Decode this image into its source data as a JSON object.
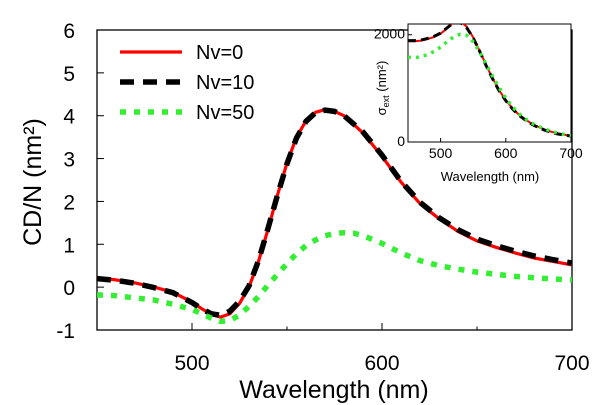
{
  "chart_data": [
    {
      "type": "line",
      "xlabel": "Wavelength (nm)",
      "ylabel": "CD/N (nm²)",
      "xlim": [
        450,
        700
      ],
      "ylim": [
        -1,
        6
      ],
      "xticks": [
        500,
        600,
        700
      ],
      "yticks": [
        -1,
        0,
        1,
        2,
        3,
        4,
        5,
        6
      ],
      "grid": false,
      "legend_position": "top-left",
      "series": [
        {
          "name": "Nv=0",
          "color": "#ff0000",
          "style": "solid",
          "x": [
            450,
            460,
            470,
            480,
            490,
            500,
            505,
            510,
            515,
            520,
            525,
            530,
            535,
            540,
            545,
            550,
            555,
            560,
            565,
            570,
            575,
            580,
            590,
            600,
            610,
            620,
            630,
            640,
            650,
            660,
            670,
            680,
            690,
            700
          ],
          "y": [
            0.22,
            0.17,
            0.1,
            0.0,
            -0.12,
            -0.35,
            -0.5,
            -0.63,
            -0.7,
            -0.62,
            -0.38,
            0.0,
            0.6,
            1.35,
            2.15,
            2.9,
            3.5,
            3.88,
            4.08,
            4.14,
            4.1,
            4.0,
            3.6,
            3.05,
            2.45,
            1.95,
            1.6,
            1.3,
            1.08,
            0.93,
            0.8,
            0.68,
            0.6,
            0.52
          ]
        },
        {
          "name": "Nv=10",
          "color": "#000000",
          "style": "dashed",
          "x": [
            450,
            460,
            470,
            480,
            490,
            500,
            505,
            510,
            515,
            520,
            525,
            530,
            535,
            540,
            545,
            550,
            555,
            560,
            565,
            570,
            575,
            580,
            590,
            600,
            610,
            620,
            630,
            640,
            650,
            660,
            670,
            680,
            690,
            700
          ],
          "y": [
            0.2,
            0.16,
            0.09,
            -0.01,
            -0.13,
            -0.36,
            -0.5,
            -0.62,
            -0.66,
            -0.56,
            -0.33,
            0.03,
            0.62,
            1.37,
            2.15,
            2.88,
            3.48,
            3.87,
            4.07,
            4.13,
            4.1,
            4.0,
            3.62,
            3.08,
            2.47,
            1.98,
            1.62,
            1.34,
            1.12,
            0.97,
            0.84,
            0.73,
            0.64,
            0.56
          ]
        },
        {
          "name": "Nv=50",
          "color": "#33ee33",
          "style": "dotted",
          "x": [
            450,
            460,
            470,
            480,
            490,
            500,
            505,
            510,
            515,
            520,
            525,
            530,
            535,
            540,
            545,
            550,
            555,
            560,
            565,
            570,
            575,
            580,
            585,
            590,
            600,
            610,
            620,
            630,
            640,
            650,
            660,
            670,
            680,
            690,
            700
          ],
          "y": [
            -0.18,
            -0.2,
            -0.25,
            -0.3,
            -0.4,
            -0.52,
            -0.62,
            -0.72,
            -0.8,
            -0.78,
            -0.65,
            -0.45,
            -0.22,
            0.05,
            0.3,
            0.55,
            0.78,
            0.97,
            1.1,
            1.2,
            1.25,
            1.27,
            1.26,
            1.2,
            1.02,
            0.8,
            0.62,
            0.5,
            0.42,
            0.35,
            0.3,
            0.25,
            0.22,
            0.19,
            0.17
          ]
        }
      ]
    },
    {
      "type": "line",
      "xlabel": "Wavelength (nm)",
      "ylabel": "σext (nm²)",
      "ylabel_main": "σ",
      "ylabel_sub": "ext",
      "ylabel_unit": " (nm²)",
      "xlim": [
        450,
        700
      ],
      "ylim": [
        0,
        2200
      ],
      "xticks": [
        500,
        600,
        700
      ],
      "yticks": [
        0,
        2000
      ],
      "grid": false,
      "series": [
        {
          "color": "#ff0000",
          "style": "solid",
          "x": [
            450,
            460,
            470,
            480,
            490,
            500,
            510,
            520,
            525,
            530,
            540,
            550,
            560,
            570,
            580,
            590,
            600,
            610,
            620,
            630,
            640,
            650,
            660,
            670,
            680,
            690,
            700
          ],
          "y": [
            1880,
            1880,
            1890,
            1920,
            1960,
            2020,
            2120,
            2230,
            2260,
            2250,
            2150,
            1950,
            1700,
            1430,
            1180,
            960,
            780,
            630,
            510,
            420,
            340,
            280,
            230,
            190,
            160,
            135,
            115
          ]
        },
        {
          "color": "#000000",
          "style": "dashed",
          "x": [
            450,
            460,
            470,
            480,
            490,
            500,
            510,
            520,
            525,
            530,
            540,
            550,
            560,
            570,
            580,
            590,
            600,
            610,
            620,
            630,
            640,
            650,
            660,
            670,
            680,
            690,
            700
          ],
          "y": [
            1890,
            1890,
            1900,
            1930,
            1970,
            2030,
            2130,
            2220,
            2240,
            2230,
            2130,
            1940,
            1690,
            1420,
            1170,
            950,
            770,
            620,
            500,
            410,
            330,
            270,
            220,
            180,
            150,
            130,
            110
          ]
        },
        {
          "color": "#33ee33",
          "style": "dotted",
          "x": [
            450,
            460,
            470,
            480,
            490,
            500,
            510,
            520,
            530,
            540,
            550,
            560,
            570,
            580,
            590,
            600,
            610,
            620,
            630,
            640,
            650,
            660,
            670,
            680,
            690,
            700
          ],
          "y": [
            1580,
            1570,
            1590,
            1630,
            1690,
            1770,
            1870,
            1960,
            2010,
            1990,
            1870,
            1680,
            1450,
            1220,
            1010,
            820,
            660,
            530,
            430,
            350,
            290,
            240,
            200,
            165,
            140,
            120
          ]
        }
      ]
    }
  ]
}
